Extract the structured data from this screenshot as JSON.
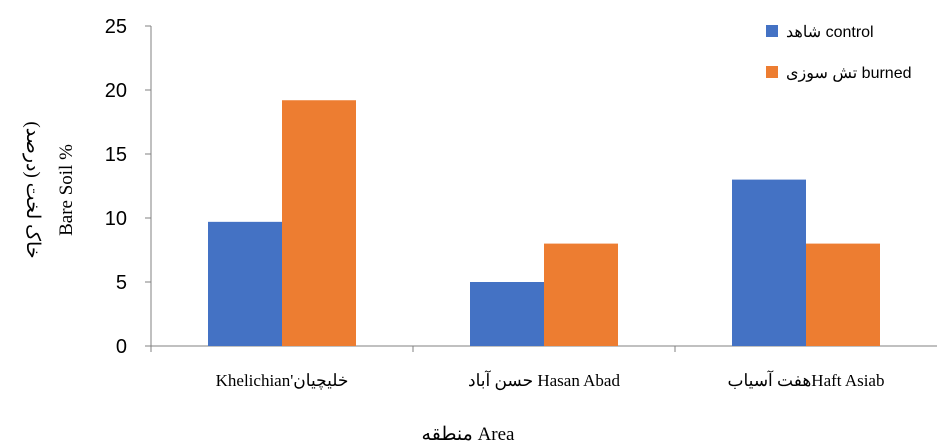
{
  "chart_data": {
    "type": "bar",
    "categories": [
      "Khelichian'خلیچیان",
      "حسن آباد Hasan Abad",
      "هفت آسیابHaft Asiab"
    ],
    "series": [
      {
        "name": "شاهد control",
        "values": [
          9.7,
          5.0,
          13.0
        ],
        "color": "#4472C4"
      },
      {
        "name": "تش سوزی burned",
        "values": [
          19.2,
          8.0,
          8.0
        ],
        "color": "#ED7D31"
      }
    ],
    "yticks": [
      "0",
      "5",
      "10",
      "15",
      "20",
      "25"
    ],
    "ylim": [
      0,
      25
    ],
    "ylabel": "Bare Soil %",
    "ylabel_secondary": "خاک لخت (درصد)",
    "xlabel": "منطقه Area",
    "legend_position": "top-right",
    "grid": false
  }
}
